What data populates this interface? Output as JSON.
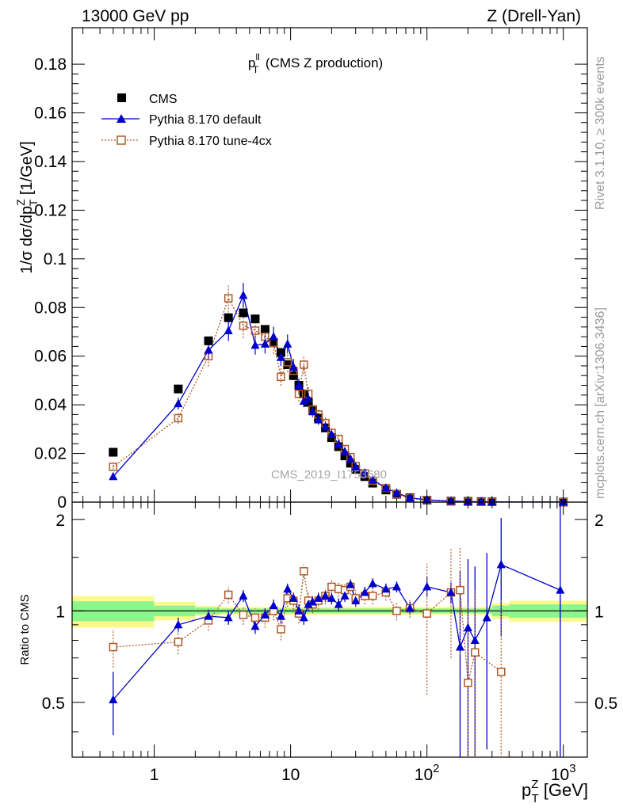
{
  "header": {
    "left": "13000 GeV pp",
    "right": "Z (Drell-Yan)"
  },
  "side_labels": {
    "rivet": "Rivet 3.1.10, ≥ 300k events",
    "mcplots": "mcplots.cern.ch [arXiv:1306.3436]"
  },
  "watermark": "CMS_2019_I1753680",
  "colors": {
    "cms": "#000000",
    "default": "#0000cc",
    "tune4cx": "#b05a28",
    "band_inner": "#8cf58c",
    "band_outer": "#fafa8c"
  },
  "chart_data": [
    {
      "type": "scatter",
      "title_main": "p",
      "title_sup": "ll",
      "title_sub": "T",
      "title_rest": " (CMS Z production)",
      "ylabel_prefix": "1/σ dσ/dp",
      "ylabel_sup": "Z",
      "ylabel_sub": "T",
      "ylabel_suffix": " [1/GeV]",
      "x_scale": "log",
      "xlim": [
        0.25,
        1500
      ],
      "ylim": [
        0,
        0.195
      ],
      "yticks": [
        0,
        0.02,
        0.04,
        0.06,
        0.08,
        0.1,
        0.12,
        0.14,
        0.16,
        0.18
      ],
      "ytick_labels": [
        "0",
        "0.02",
        "0.04",
        "0.06",
        "0.08",
        "0.1",
        "0.12",
        "0.14",
        "0.16",
        "0.18"
      ],
      "legend_position": "top-left",
      "x": [
        0.5,
        1.5,
        2.5,
        3.5,
        4.5,
        5.5,
        6.5,
        7.5,
        8.5,
        9.5,
        10.5,
        11.5,
        12.5,
        13.5,
        14.5,
        16,
        18,
        20,
        22.5,
        25,
        27.5,
        30,
        35,
        40,
        50,
        60,
        75,
        100,
        150,
        200,
        250,
        300,
        1000
      ],
      "series": [
        {
          "name": "CMS",
          "marker": "square-filled",
          "values": [
            0.0205,
            0.0465,
            0.0663,
            0.0758,
            0.0778,
            0.0753,
            0.071,
            0.0655,
            0.0615,
            0.0565,
            0.052,
            0.048,
            0.0445,
            0.041,
            0.038,
            0.0345,
            0.0305,
            0.0265,
            0.0228,
            0.019,
            0.016,
            0.0135,
            0.0105,
            0.0078,
            0.005,
            0.0032,
            0.0018,
            0.0008,
            0.0004,
            0.0003,
            0.00022,
            0.00015,
            5e-05
          ]
        },
        {
          "name": "Pythia 8.170 default",
          "marker": "triangle-filled",
          "values": [
            0.0105,
            0.0405,
            0.0625,
            0.0705,
            0.085,
            0.0645,
            0.065,
            0.068,
            0.0595,
            0.065,
            0.0555,
            0.048,
            0.0415,
            0.0425,
            0.0372,
            0.0338,
            0.031,
            0.0278,
            0.0238,
            0.0208,
            0.0178,
            0.0145,
            0.012,
            0.0092,
            0.0058,
            0.0038,
            0.0018,
            0.00095,
            0.00045,
            0.00022,
            0.0002,
            0.00012,
            6e-05
          ]
        },
        {
          "name": "Pythia 8.170 tune-4cx",
          "marker": "square-open",
          "values": [
            0.0145,
            0.0345,
            0.06,
            0.0838,
            0.0725,
            0.0705,
            0.068,
            0.0655,
            0.0515,
            0.0575,
            0.054,
            0.0445,
            0.0565,
            0.0445,
            0.038,
            0.036,
            0.0325,
            0.0285,
            0.026,
            0.0218,
            0.0185,
            0.0148,
            0.0118,
            0.0088,
            0.0058,
            0.0032,
            0.0016,
            0.0008,
            0.0003,
            0.00015,
            0.00012,
            0.0001,
            4e-05
          ]
        }
      ]
    },
    {
      "type": "scatter",
      "ylabel": "Ratio to CMS",
      "xlabel_main": "p",
      "xlabel_sup": "Z",
      "xlabel_sub": "T",
      "xlabel_rest": " [GeV]",
      "x_scale": "log",
      "xlim": [
        0.25,
        1500
      ],
      "ylim": [
        0.33,
        2.28
      ],
      "yticks": [
        0.5,
        1,
        2
      ],
      "ytick_labels": [
        "0.5",
        "1",
        "2"
      ],
      "xtick_labels": [
        {
          "value": 1,
          "base": "1",
          "exp": ""
        },
        {
          "value": 10,
          "base": "10",
          "exp": ""
        },
        {
          "value": 100,
          "base": "10",
          "exp": "2"
        },
        {
          "value": 1000,
          "base": "10",
          "exp": "3"
        }
      ],
      "bands": [
        {
          "x_edges": [
            0.25,
            1,
            2,
            3,
            300,
            400,
            1500
          ],
          "inner": [
            0.075,
            0.04,
            0.025,
            0.018,
            0.04,
            0.05
          ],
          "outer": [
            0.12,
            0.07,
            0.04,
            0.03,
            0.06,
            0.08
          ]
        }
      ],
      "x_default": [
        0.5,
        1.5,
        2.5,
        3.5,
        4.5,
        5.5,
        6.5,
        7.5,
        8.5,
        9.5,
        10.5,
        11.5,
        12.5,
        13.5,
        14.5,
        16,
        18,
        20,
        22.5,
        25,
        27.5,
        30,
        35,
        40,
        50,
        60,
        75,
        100,
        150,
        175,
        200,
        225,
        275,
        350,
        950
      ],
      "series": [
        {
          "name": "Pythia 8.170 default",
          "values": [
            0.51,
            0.9,
            0.96,
            0.95,
            1.12,
            0.89,
            0.97,
            1.04,
            0.96,
            1.18,
            1.1,
            1.0,
            0.95,
            1.05,
            1.07,
            1.1,
            1.12,
            1.1,
            1.05,
            1.12,
            1.22,
            1.08,
            1.15,
            1.23,
            1.18,
            1.2,
            1.02,
            1.2,
            1.15,
            0.76,
            0.88,
            0.8,
            0.95,
            1.42,
            1.17
          ]
        },
        {
          "name": "Pythia 8.170 tune-4cx",
          "x": [
            0.5,
            1.5,
            2.5,
            3.5,
            4.5,
            5.5,
            6.5,
            7.5,
            8.5,
            9.5,
            10.5,
            11.5,
            12.5,
            13.5,
            14.5,
            16,
            18,
            20,
            22.5,
            25,
            27.5,
            30,
            35,
            40,
            50,
            60,
            75,
            100,
            150,
            175,
            200,
            225,
            350
          ],
          "values": [
            0.76,
            0.79,
            0.93,
            1.13,
            0.97,
            0.95,
            0.95,
            1.0,
            0.87,
            1.1,
            1.08,
            0.98,
            1.35,
            1.08,
            1.05,
            1.08,
            1.12,
            1.2,
            1.18,
            1.17,
            1.2,
            1.1,
            1.12,
            1.12,
            1.15,
            1.0,
            1.02,
            0.98,
            1.15,
            1.17,
            0.58,
            0.73,
            0.63
          ]
        }
      ]
    }
  ]
}
